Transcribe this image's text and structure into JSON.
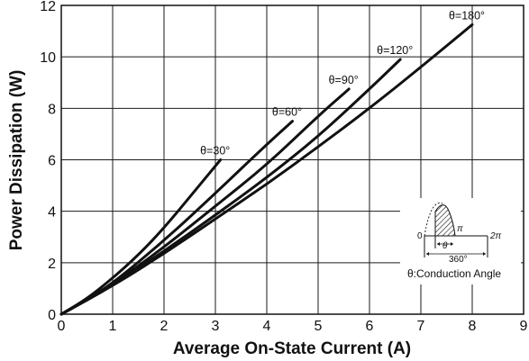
{
  "chart_data": {
    "type": "line",
    "title": "",
    "xlabel": "Average On-State Current (A)",
    "ylabel": "Power Dissipation (W)",
    "xlim": [
      0,
      9
    ],
    "ylim": [
      0,
      12
    ],
    "xticks": [
      "0",
      "1",
      "2",
      "3",
      "4",
      "5",
      "6",
      "7",
      "8",
      "9"
    ],
    "yticks": [
      "0",
      "2",
      "4",
      "6",
      "8",
      "10",
      "12"
    ],
    "grid": true,
    "series": [
      {
        "name": "θ=30°",
        "x": [
          0,
          0.5,
          1,
          1.5,
          2,
          2.5,
          3.1
        ],
        "y": [
          0,
          0.6,
          1.4,
          2.3,
          3.35,
          4.55,
          6.0
        ]
      },
      {
        "name": "θ=60°",
        "x": [
          0,
          0.5,
          1,
          2,
          3,
          4,
          4.5
        ],
        "y": [
          0,
          0.55,
          1.2,
          2.85,
          4.7,
          6.6,
          7.5
        ]
      },
      {
        "name": "θ=90°",
        "x": [
          0,
          1,
          2,
          3,
          4,
          5,
          5.6
        ],
        "y": [
          0,
          1.15,
          2.6,
          4.2,
          5.8,
          7.7,
          8.75
        ]
      },
      {
        "name": "θ=120°",
        "x": [
          0,
          1,
          2,
          3,
          4,
          5,
          6,
          6.6
        ],
        "y": [
          0,
          1.1,
          2.45,
          3.85,
          5.3,
          6.9,
          8.75,
          9.9
        ]
      },
      {
        "name": "θ=180°",
        "x": [
          0,
          1,
          2,
          3,
          4,
          5,
          6,
          7,
          8
        ],
        "y": [
          0,
          1.1,
          2.35,
          3.7,
          5.05,
          6.5,
          8.0,
          9.6,
          11.25
        ]
      }
    ],
    "inset": {
      "zero_label": "0",
      "pi_label": "π",
      "two_pi_label": "2π",
      "theta_label": "θ",
      "degree_label": "360°",
      "caption": "θ:Conduction Angle"
    }
  }
}
